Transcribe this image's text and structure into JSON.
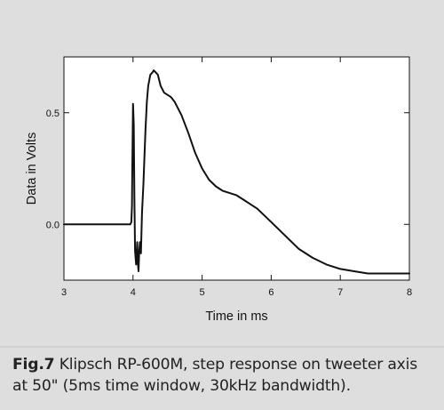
{
  "caption": {
    "figure_label": "Fig.7",
    "text": "Klipsch RP-600M, step response on tweeter axis at 50\" (5ms time window, 30kHz bandwidth)."
  },
  "colors": {
    "background": "#dedede",
    "plot_area": "#ffffff",
    "trace": "#111111",
    "divider": "#cfd0d2"
  },
  "chart_data": {
    "type": "line",
    "title": "",
    "xlabel": "Time in ms",
    "ylabel": "Data in Volts",
    "xlim": [
      3,
      8
    ],
    "ylim": [
      -0.25,
      0.75
    ],
    "x_ticks": [
      3,
      4,
      5,
      6,
      7,
      8
    ],
    "y_ticks": [
      0.0,
      0.5
    ],
    "x_tick_labels": [
      "3",
      "4",
      "5",
      "6",
      "7",
      "8"
    ],
    "y_tick_labels": [
      "0.0",
      "0.5"
    ],
    "grid": false,
    "legend": "none",
    "series": [
      {
        "x": [
          3.0,
          3.5,
          3.9,
          3.96,
          3.975,
          3.985,
          3.99,
          4.0,
          4.01,
          4.02,
          4.03,
          4.045,
          4.06,
          4.07,
          4.08,
          4.09,
          4.1,
          4.115,
          4.13,
          4.15,
          4.18,
          4.2,
          4.22,
          4.25,
          4.28,
          4.3,
          4.33,
          4.36,
          4.4,
          4.45,
          4.5,
          4.55,
          4.6,
          4.7,
          4.8,
          4.9,
          5.0,
          5.1,
          5.2,
          5.3,
          5.4,
          5.5,
          5.6,
          5.7,
          5.8,
          5.9,
          6.0,
          6.2,
          6.4,
          6.6,
          6.8,
          7.0,
          7.2,
          7.4,
          7.6,
          7.8,
          8.0
        ],
        "y": [
          0.0,
          0.0,
          0.0,
          0.0,
          0.01,
          0.08,
          0.25,
          0.54,
          0.45,
          0.1,
          -0.12,
          -0.18,
          -0.08,
          -0.17,
          -0.21,
          -0.12,
          -0.08,
          -0.13,
          0.05,
          0.18,
          0.42,
          0.55,
          0.62,
          0.67,
          0.68,
          0.69,
          0.68,
          0.67,
          0.62,
          0.59,
          0.58,
          0.57,
          0.55,
          0.49,
          0.41,
          0.32,
          0.25,
          0.2,
          0.17,
          0.15,
          0.14,
          0.13,
          0.11,
          0.09,
          0.07,
          0.04,
          0.01,
          -0.05,
          -0.11,
          -0.15,
          -0.18,
          -0.2,
          -0.21,
          -0.22,
          -0.22,
          -0.22,
          -0.22
        ]
      }
    ]
  }
}
